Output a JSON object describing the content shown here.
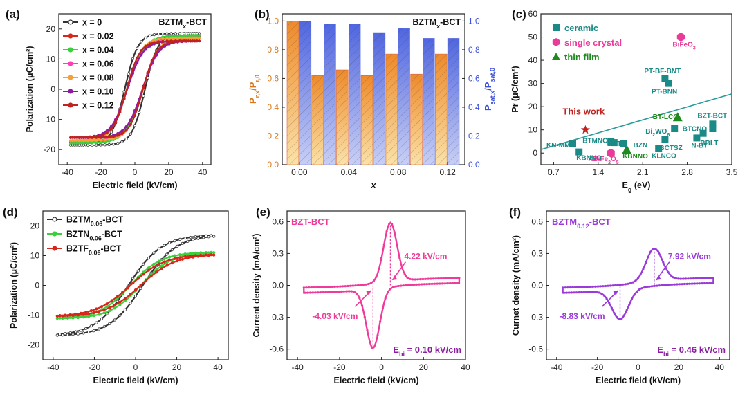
{
  "colors": {
    "black": "#333333",
    "red": "#d8261b",
    "green": "#3ccf3c",
    "pink": "#ff3fb4",
    "orange": "#f3a13a",
    "purple": "#8b1ea0",
    "darkred": "#c0231f",
    "blue": "#5a6fe0",
    "teal": "#1a8a86",
    "magenta": "#ea3a9a",
    "darkgreen": "#1f8a1f",
    "fitline": "#2a9a9a",
    "violet": "#9a3ad8",
    "pinkcurve": "#f03a9a"
  },
  "chart_data": [
    {
      "id": "a",
      "type": "line",
      "panel_label": "(a)",
      "annotation": "BZTMx-BCT",
      "xlabel": "Electric field (kV/cm)",
      "ylabel": "Polarization (μC/cm²)",
      "xlim": [
        -45,
        45
      ],
      "ylim": [
        -25,
        25
      ],
      "xticks": [
        "-40",
        "-20",
        "0",
        "20",
        "40"
      ],
      "yticks": [
        "-20",
        "-10",
        "0",
        "10",
        "20"
      ],
      "legend_position": "top-left",
      "series": [
        {
          "name": "x = 0",
          "color": "#333333",
          "Emax": 38,
          "Psat": 18.5,
          "Pr": 12,
          "Ec": 6,
          "marker": "open-circle"
        },
        {
          "name": "x = 0.02",
          "color": "#d8261b",
          "Emax": 38,
          "Psat": 17.5,
          "Pr": 7.2,
          "Ec": 4.5,
          "marker": "filled-circle"
        },
        {
          "name": "x = 0.04",
          "color": "#3ccf3c",
          "Emax": 38,
          "Psat": 17.8,
          "Pr": 7.6,
          "Ec": 4.6,
          "marker": "filled-circle"
        },
        {
          "name": "x = 0.06",
          "color": "#ff3fb4",
          "Emax": 38,
          "Psat": 17.0,
          "Pr": 7.0,
          "Ec": 4.5,
          "marker": "filled-circle"
        },
        {
          "name": "x = 0.08",
          "color": "#f3a13a",
          "Emax": 38,
          "Psat": 17.0,
          "Pr": 8.5,
          "Ec": 4.8,
          "marker": "filled-circle"
        },
        {
          "name": "x = 0.10",
          "color": "#8b1ea0",
          "Emax": 38,
          "Psat": 16.0,
          "Pr": 7.2,
          "Ec": 4.5,
          "marker": "filled-circle"
        },
        {
          "name": "x = 0.12",
          "color": "#c0231f",
          "Emax": 38,
          "Psat": 16.0,
          "Pr": 8.7,
          "Ec": 4.8,
          "marker": "filled-circle"
        }
      ]
    },
    {
      "id": "b",
      "type": "bar",
      "panel_label": "(b)",
      "annotation": "BZTMx-BCT",
      "xlabel": "x",
      "ylabel_left": "Pr,x/Pr,0",
      "ylabel_right": "Psat,x/Psat,0",
      "ylim": [
        0,
        1.05
      ],
      "yticks": [
        "0.0",
        "0.2",
        "0.4",
        "0.6",
        "0.8",
        "1.0"
      ],
      "xticks": [
        "0.00",
        "0.04",
        "0.08",
        "0.12"
      ],
      "categories": [
        "0.00",
        "0.02",
        "0.04",
        "0.06",
        "0.08",
        "0.10",
        "0.12"
      ],
      "series": [
        {
          "name": "Pr,x/Pr,0",
          "color": "#f3a13a",
          "values": [
            1.0,
            0.62,
            0.66,
            0.62,
            0.77,
            0.63,
            0.77
          ]
        },
        {
          "name": "Psat,x/Psat,0",
          "color": "#5a6fe0",
          "values": [
            1.0,
            0.98,
            0.98,
            0.92,
            0.95,
            0.88,
            0.88
          ]
        }
      ]
    },
    {
      "id": "c",
      "type": "scatter",
      "panel_label": "(c)",
      "xlabel": "Eg (eV)",
      "ylabel": "Pr (μC/cm²)",
      "xlim": [
        0.5,
        3.5
      ],
      "ylim": [
        -5,
        60
      ],
      "xticks": [
        "0.7",
        "1.4",
        "2.1",
        "2.8",
        "3.5"
      ],
      "yticks": [
        "0",
        "10",
        "20",
        "30",
        "40",
        "50",
        "60"
      ],
      "legend": [
        {
          "name": "ceramic",
          "marker": "square",
          "color": "#1a8a86"
        },
        {
          "name": "single crystal",
          "marker": "hexagon",
          "color": "#ea3a9a"
        },
        {
          "name": "thin film",
          "marker": "triangle",
          "color": "#1f8a1f"
        }
      ],
      "fit_line": {
        "x": [
          0.5,
          3.5
        ],
        "y": [
          1.5,
          25.5
        ]
      },
      "points": [
        {
          "label": "This work",
          "x": 1.2,
          "y": 10,
          "kind": "star"
        },
        {
          "label": "BiFeO3",
          "x": 2.7,
          "y": 50,
          "kind": "single crystal"
        },
        {
          "label": "KBiFe2O5",
          "x": 1.6,
          "y": 0,
          "kind": "single crystal"
        },
        {
          "label": "BT-LCO",
          "x": 2.65,
          "y": 15.5,
          "kind": "thin film"
        },
        {
          "label": "KBNNO",
          "x": 1.85,
          "y": 1.5,
          "kind": "thin film"
        },
        {
          "label": "PT-BF-BNT",
          "x": 2.45,
          "y": 32,
          "kind": "ceramic"
        },
        {
          "label": "PT-BNN",
          "x": 2.5,
          "y": 30,
          "kind": "ceramic"
        },
        {
          "label": "BZT-BCT",
          "x": 3.2,
          "y": 12.5,
          "kind": "ceramic"
        },
        {
          "label": "BBLT",
          "x": 3.2,
          "y": 10.5,
          "kind": "ceramic"
        },
        {
          "label": "BTCNO",
          "x": 3.05,
          "y": 8.5,
          "kind": "ceramic"
        },
        {
          "label": "Bi2WO6",
          "x": 2.6,
          "y": 10.5,
          "kind": "ceramic"
        },
        {
          "label": "BCTSZ",
          "x": 2.45,
          "y": 6,
          "kind": "ceramic"
        },
        {
          "label": "N-BT",
          "x": 2.95,
          "y": 6.5,
          "kind": "ceramic"
        },
        {
          "label": "KLNCO",
          "x": 2.35,
          "y": 2,
          "kind": "ceramic"
        },
        {
          "label": "BNT",
          "x": 1.65,
          "y": 4.5,
          "kind": "ceramic"
        },
        {
          "label": "BTMNO",
          "x": 1.6,
          "y": 5,
          "kind": "ceramic"
        },
        {
          "label": "KN-MM",
          "x": 1.0,
          "y": 4,
          "kind": "ceramic"
        },
        {
          "label": "KBNNO",
          "x": 1.1,
          "y": 0.5,
          "kind": "ceramic"
        },
        {
          "label": "BZN",
          "x": 1.8,
          "y": 4,
          "kind": "ceramic"
        }
      ]
    },
    {
      "id": "d",
      "type": "line",
      "panel_label": "(d)",
      "xlabel": "Electric field (kV/cm)",
      "ylabel": "Polarization (μC/cm²)",
      "xlim": [
        -45,
        45
      ],
      "ylim": [
        -25,
        25
      ],
      "xticks": [
        "-40",
        "-20",
        "0",
        "20",
        "40"
      ],
      "yticks": [
        "-20",
        "-10",
        "0",
        "10",
        "20"
      ],
      "legend_position": "top-left",
      "series": [
        {
          "name": "BZTM0.06-BCT",
          "color": "#333333",
          "Emax": 38,
          "Psat": 16.5,
          "Pr": 3.5,
          "Ec": 3.5,
          "marker": "open-circle"
        },
        {
          "name": "BZTN0.06-BCT",
          "color": "#3ccf3c",
          "Emax": 38,
          "Psat": 11.0,
          "Pr": 1.8,
          "Ec": 2.5,
          "marker": "filled-circle"
        },
        {
          "name": "BZTF0.06-BCT",
          "color": "#d8261b",
          "Emax": 38,
          "Psat": 10.2,
          "Pr": 1.5,
          "Ec": 2.5,
          "marker": "filled-circle"
        }
      ]
    },
    {
      "id": "e",
      "type": "line",
      "panel_label": "(e)",
      "annotation": "BZT-BCT",
      "xlabel": "Electric field (kV/cm)",
      "ylabel": "Current density (mA/cm²)",
      "xlim": [
        -45,
        40
      ],
      "ylim": [
        -0.7,
        0.7
      ],
      "xticks": [
        "-40",
        "-20",
        "0",
        "20",
        "40"
      ],
      "yticks": [
        "-0.6",
        "-0.3",
        "0.0",
        "0.3",
        "0.6"
      ],
      "peaks": {
        "positive": {
          "E": 4.22,
          "J": 0.6
        },
        "negative": {
          "E": -4.03,
          "J": -0.6
        }
      },
      "Emax": 37,
      "color": "#f03a9a",
      "labels": {
        "pos": "4.22 kV/cm",
        "neg": "-4.03 kV/cm",
        "ebi_prefix": "E",
        "ebi_sub": "bi",
        "ebi_value": " = 0.10 kV/cm"
      }
    },
    {
      "id": "f",
      "type": "line",
      "panel_label": "(f)",
      "annotation": "BZTM0.12-BCT",
      "xlabel": "Electric field (kV/cm)",
      "ylabel": "Curnet density (mA/cm²)",
      "xlim": [
        -45,
        45
      ],
      "ylim": [
        -0.7,
        0.7
      ],
      "xticks": [
        "-40",
        "-20",
        "0",
        "20",
        "40"
      ],
      "yticks": [
        "-0.6",
        "-0.3",
        "0.0",
        "0.3",
        "0.6"
      ],
      "peaks": {
        "positive": {
          "E": 7.92,
          "J": 0.35
        },
        "negative": {
          "E": -8.83,
          "J": -0.32
        }
      },
      "Emax": 37,
      "color": "#9a3ad8",
      "labels": {
        "pos": "7.92 kV/cm",
        "neg": "-8.83 kV/cm",
        "ebi_prefix": "E",
        "ebi_sub": "bi",
        "ebi_value": " = 0.46 kV/cm"
      }
    }
  ]
}
